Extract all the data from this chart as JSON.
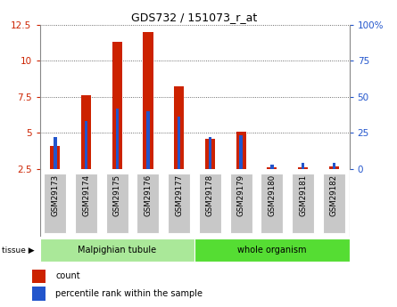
{
  "title": "GDS732 / 151073_r_at",
  "samples": [
    "GSM29173",
    "GSM29174",
    "GSM29175",
    "GSM29176",
    "GSM29177",
    "GSM29178",
    "GSM29179",
    "GSM29180",
    "GSM29181",
    "GSM29182"
  ],
  "count_values": [
    4.1,
    7.6,
    11.3,
    12.0,
    8.2,
    4.6,
    5.05,
    2.6,
    2.6,
    2.7
  ],
  "percentile_values": [
    22,
    33,
    42,
    40,
    36,
    22,
    23,
    3,
    4,
    4
  ],
  "baseline": 2.5,
  "ylim_left": [
    2.5,
    12.5
  ],
  "ylim_right": [
    0,
    100
  ],
  "yticks_left": [
    2.5,
    5.0,
    7.5,
    10.0,
    12.5
  ],
  "ytick_labels_left": [
    "2.5",
    "5",
    "7.5",
    "10",
    "12.5"
  ],
  "yticks_right": [
    0,
    25,
    50,
    75,
    100
  ],
  "ytick_labels_right": [
    "0",
    "25",
    "50",
    "75",
    "100%"
  ],
  "bar_color": "#cc2200",
  "percentile_color": "#2255cc",
  "grid_color": "#444444",
  "tissue_groups": [
    {
      "label": "Malpighian tubule",
      "start": 0,
      "end": 5,
      "color": "#aae899"
    },
    {
      "label": "whole organism",
      "start": 5,
      "end": 10,
      "color": "#55dd33"
    }
  ],
  "tick_label_bg": "#c8c8c8",
  "legend_count_label": "count",
  "legend_pct_label": "percentile rank within the sample",
  "tissue_label": "tissue"
}
